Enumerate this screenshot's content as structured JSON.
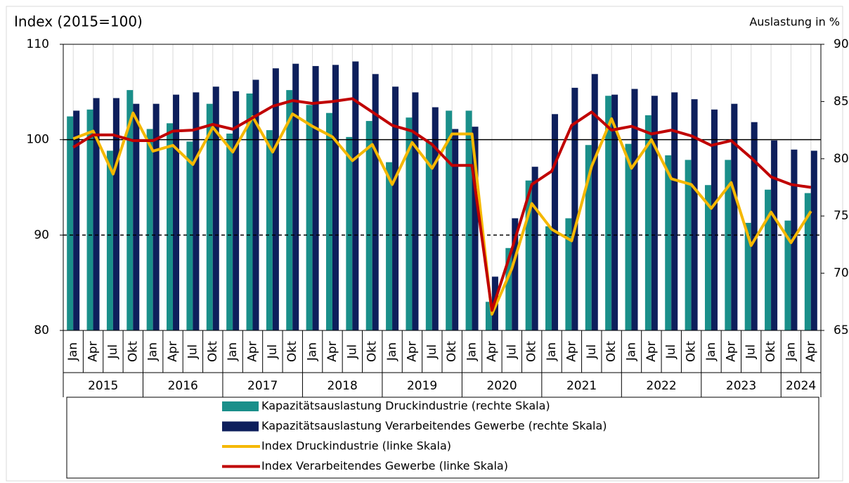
{
  "chart_data": {
    "type": "bar_line",
    "y_label": "Index (2015=100)",
    "y2_label": "Auslastung in %",
    "categories": [
      "Jan",
      "Apr",
      "Jul",
      "Okt",
      "Jan",
      "Apr",
      "Jul",
      "Okt",
      "Jan",
      "Apr",
      "Jul",
      "Okt",
      "Jan",
      "Apr",
      "Jul",
      "Okt",
      "Jan",
      "Apr",
      "Jul",
      "Okt",
      "Jan",
      "Apr",
      "Jul",
      "Okt",
      "Jan",
      "Apr",
      "Jul",
      "Okt",
      "Jan",
      "Apr",
      "Jul",
      "Okt",
      "Jan",
      "Apr",
      "Jul",
      "Okt",
      "Jan",
      "Apr"
    ],
    "x_groups": [
      "2015",
      "2016",
      "2017",
      "2018",
      "2019",
      "2020",
      "2021",
      "2022",
      "2023",
      "2024"
    ],
    "ylim": [
      80,
      110
    ],
    "yticks": [
      80,
      90,
      100,
      110
    ],
    "y2lim": [
      65,
      90
    ],
    "y2ticks": [
      65,
      70,
      75,
      80,
      85,
      90
    ],
    "reference_lines": [
      {
        "value": 100,
        "style": "solid"
      },
      {
        "value": 90,
        "style": "dashed"
      }
    ],
    "legend": "bottom",
    "series": [
      {
        "name": "Kapazitätsauslastung Druckindustrie (rechte Skala)",
        "type": "bar",
        "axis": "y2",
        "color": "#1a8f8a",
        "values": [
          83.7,
          84.3,
          80.7,
          86.0,
          82.6,
          83.1,
          81.5,
          84.8,
          82.2,
          85.7,
          82.5,
          86.0,
          84.7,
          84.0,
          81.9,
          83.3,
          79.7,
          83.6,
          81.5,
          84.2,
          84.2,
          67.5,
          72.2,
          78.1,
          74.1,
          74.8,
          81.2,
          85.5,
          81.3,
          83.8,
          80.3,
          79.9,
          77.7,
          79.9,
          74.4,
          77.3,
          74.6,
          77.0
        ]
      },
      {
        "name": "Kapazitätsauslastung Verarbeitendes Gewerbe (rechte Skala)",
        "type": "bar",
        "axis": "y2",
        "color": "#0d1f5c",
        "values": [
          84.2,
          85.3,
          85.3,
          84.8,
          84.8,
          85.6,
          85.8,
          86.3,
          85.9,
          86.9,
          87.9,
          88.3,
          88.1,
          88.2,
          88.5,
          87.4,
          86.3,
          85.8,
          84.5,
          82.6,
          82.8,
          69.7,
          74.8,
          79.3,
          83.9,
          86.2,
          87.4,
          85.6,
          86.1,
          85.5,
          85.8,
          85.2,
          84.3,
          84.8,
          83.2,
          81.6,
          80.8,
          80.7
        ]
      },
      {
        "name": "Index Druckindustrie (linke Skala)",
        "type": "line",
        "color": "#f5b800",
        "values": [
          100.1,
          100.9,
          96.4,
          102.8,
          98.8,
          99.4,
          97.4,
          101.3,
          98.7,
          102.4,
          98.7,
          102.7,
          101.4,
          100.3,
          97.8,
          99.5,
          95.3,
          99.7,
          97.0,
          100.6,
          100.6,
          81.7,
          86.5,
          93.3,
          90.6,
          89.4,
          97.2,
          102.2,
          97.0,
          100.0,
          95.9,
          95.3,
          92.8,
          95.5,
          88.9,
          92.4,
          89.2,
          92.5
        ]
      },
      {
        "name": "Index Verarbeitendes Gewerbe (linke Skala)",
        "type": "line",
        "color": "#c00000",
        "values": [
          99.2,
          100.5,
          100.5,
          99.9,
          99.9,
          100.9,
          101.0,
          101.6,
          101.1,
          102.3,
          103.5,
          104.1,
          103.8,
          104.0,
          104.3,
          102.9,
          101.5,
          100.9,
          99.5,
          97.3,
          97.3,
          82.1,
          88.5,
          95.3,
          96.7,
          101.5,
          102.9,
          101.0,
          101.4,
          100.6,
          101.0,
          100.4,
          99.4,
          99.9,
          98.1,
          96.1,
          95.3,
          95.0
        ]
      }
    ]
  }
}
